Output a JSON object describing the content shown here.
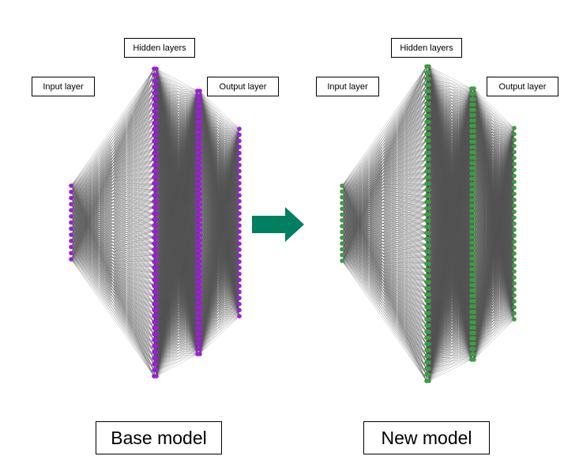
{
  "models": [
    {
      "caption": "Base model",
      "labels": {
        "input": "Input layer",
        "hidden": "Hidden layers",
        "output": "Output layer"
      },
      "node_color": "#9b1fd6",
      "layers": [
        {
          "count": 13
        },
        {
          "count": 52
        },
        {
          "count": 52
        },
        {
          "count": 52
        },
        {
          "count": 52
        },
        {
          "count": 32
        }
      ]
    },
    {
      "caption": "New model",
      "labels": {
        "input": "Input layer",
        "hidden": "Hidden layers",
        "output": "Output layer"
      },
      "node_color": "#3f9a46",
      "layers": [
        {
          "count": 14
        },
        {
          "count": 52
        },
        {
          "count": 52
        },
        {
          "count": 52
        },
        {
          "count": 52
        },
        {
          "count": 33
        }
      ]
    }
  ],
  "arrow_color": "#008060",
  "edge_color": "#555555"
}
